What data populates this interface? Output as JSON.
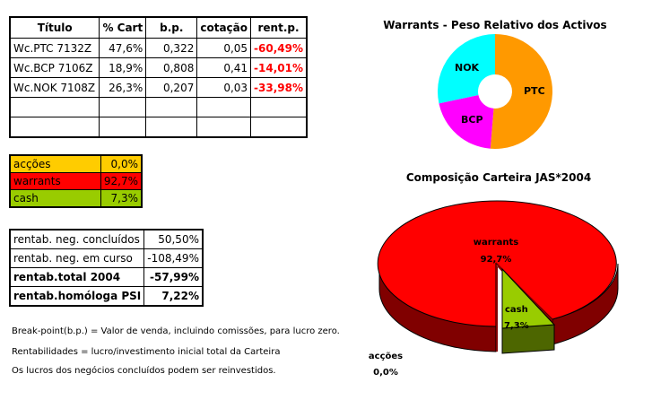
{
  "holdings_table": {
    "headers": [
      "Título",
      "% Cart",
      "b.p.",
      "cotação",
      "rent.p."
    ],
    "rows": [
      {
        "titulo": "Wc.PTC 7132Z",
        "pct_cart": "47,6%",
        "bp": "0,322",
        "cotacao": "0,05",
        "rent": "-60,49%"
      },
      {
        "titulo": "Wc.BCP 7106Z",
        "pct_cart": "18,9%",
        "bp": "0,808",
        "cotacao": "0,41",
        "rent": "-14,01%"
      },
      {
        "titulo": "Wc.NOK 7108Z",
        "pct_cart": "26,3%",
        "bp": "0,207",
        "cotacao": "0,03",
        "rent": "-33,98%"
      },
      {
        "titulo": "",
        "pct_cart": "",
        "bp": "",
        "cotacao": "",
        "rent": ""
      },
      {
        "titulo": "",
        "pct_cart": "",
        "bp": "",
        "cotacao": "",
        "rent": ""
      }
    ]
  },
  "allocation_table": {
    "rows": [
      {
        "label": "acções",
        "value": "0,0%",
        "color": "#ffcc00"
      },
      {
        "label": "warrants",
        "value": "92,7%",
        "color": "#ff0000"
      },
      {
        "label": "cash",
        "value": "7,3%",
        "color": "#99cc00"
      }
    ]
  },
  "returns_table": {
    "rows": [
      {
        "label": "rentab. neg. concluídos",
        "value": "50,50%",
        "bold": false
      },
      {
        "label": "rentab. neg. em curso",
        "value": "-108,49%",
        "bold": false
      },
      {
        "label": "rentab.total 2004",
        "value": "-57,99%",
        "bold": true
      },
      {
        "label": "rentab.homóloga PSI",
        "value": "7,22%",
        "bold": true
      }
    ]
  },
  "notes": [
    "Break-point(b.p.) = Valor de venda, incluindo comissões, para lucro zero.",
    "Rentabilidades = lucro/investimento inicial total da Carteira",
    "Os lucros dos negócios concluídos podem ser reinvestidos."
  ],
  "chart_data": [
    {
      "type": "pie",
      "subtype": "doughnut",
      "title": "Warrants - Peso Relativo dos Activos",
      "categories": [
        "PTC",
        "BCP",
        "NOK"
      ],
      "values": [
        47.6,
        18.9,
        26.3
      ],
      "colors": [
        "#ff9900",
        "#ff00ff",
        "#00ffff"
      ],
      "legend": "none",
      "data_labels": [
        "PTC",
        "BCP",
        "NOK"
      ]
    },
    {
      "type": "pie",
      "subtype": "3d-exploded",
      "title": "Composição Carteira JAS*2004",
      "categories": [
        "warrants",
        "cash",
        "acções"
      ],
      "values": [
        92.7,
        7.3,
        0.0
      ],
      "value_labels": [
        "92,7%",
        "7,3%",
        "0,0%"
      ],
      "colors": [
        "#ff0000",
        "#99cc00",
        "#ffcc00"
      ],
      "side_colors": [
        "#800000",
        "#4d6600",
        "#806600"
      ],
      "legend": "none"
    }
  ]
}
